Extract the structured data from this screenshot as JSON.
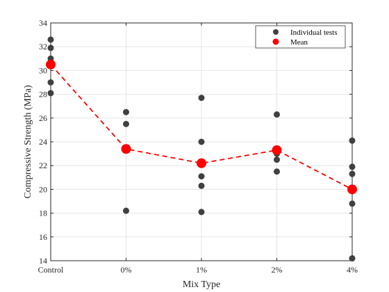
{
  "chart_data": {
    "type": "scatter",
    "title": "",
    "xlabel": "Mix Type",
    "ylabel": "Compressive Strength (MPa)",
    "categories": [
      "Control",
      "0%",
      "1%",
      "2%",
      "4%"
    ],
    "ylim": [
      14,
      34
    ],
    "yticks": [
      14,
      16,
      18,
      20,
      22,
      24,
      26,
      28,
      30,
      32,
      34
    ],
    "grid": true,
    "legend_position": "top-right",
    "series": [
      {
        "name": "Individual tests",
        "marker": "circle",
        "color": "#404040",
        "points": [
          {
            "category": "Control",
            "values": [
              32.6,
              31.9,
              31.0,
              29.0,
              28.1
            ]
          },
          {
            "category": "0%",
            "values": [
              26.5,
              25.5,
              18.2
            ]
          },
          {
            "category": "1%",
            "values": [
              27.7,
              24.0,
              21.1,
              20.3,
              18.1
            ]
          },
          {
            "category": "2%",
            "values": [
              26.3,
              23.0,
              22.5,
              21.5
            ]
          },
          {
            "category": "4%",
            "values": [
              24.1,
              21.9,
              21.3,
              18.8,
              14.2
            ]
          }
        ]
      },
      {
        "name": "Mean",
        "marker": "circle",
        "line": "dashed",
        "color": "#ff0000",
        "values": [
          30.5,
          23.4,
          22.2,
          23.3,
          20.0
        ]
      }
    ]
  }
}
